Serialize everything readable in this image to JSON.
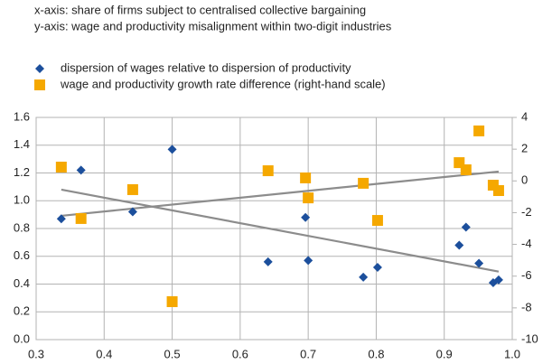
{
  "chart_data": {
    "type": "scatter",
    "annotations": [
      "x-axis: share of firms subject to centralised collective bargaining",
      "y-axis: wage and productivity misalignment within two-digit industries"
    ],
    "series": [
      {
        "name": "dispersion of wages relative to dispersion of productivity",
        "color": "#1c4f9c",
        "marker": "diamond",
        "x": [
          0.337,
          0.366,
          0.442,
          0.5,
          0.641,
          0.696,
          0.7,
          0.781,
          0.802,
          0.922,
          0.932,
          0.951,
          0.972,
          0.98
        ],
        "values": [
          0.87,
          1.22,
          0.92,
          1.37,
          0.56,
          0.88,
          0.57,
          0.45,
          0.52,
          0.68,
          0.81,
          0.55,
          0.41,
          0.43
        ],
        "trendline": {
          "color": "#8c8c8c",
          "x": [
            0.337,
            0.98
          ],
          "values": [
            1.08,
            0.49
          ]
        }
      },
      {
        "name": "wage and productivity growth rate difference (right-hand scale)",
        "color": "#f5a800",
        "marker": "square",
        "axis": "y2",
        "x": [
          0.337,
          0.366,
          0.442,
          0.5,
          0.641,
          0.696,
          0.7,
          0.781,
          0.802,
          0.922,
          0.932,
          0.951,
          0.972,
          0.98
        ],
        "values": [
          0.87,
          -2.37,
          -0.55,
          -7.61,
          0.64,
          0.19,
          -1.07,
          -0.15,
          -2.49,
          1.15,
          0.7,
          3.15,
          -0.27,
          -0.61
        ],
        "trendline": {
          "color": "#8c8c8c",
          "x": [
            0.337,
            0.98
          ],
          "values": [
            -2.2,
            0.59
          ]
        }
      }
    ],
    "xlim": [
      0.3,
      1.0
    ],
    "xticks": [
      0.3,
      0.4,
      0.5,
      0.6,
      0.7,
      0.8,
      0.9,
      {
        "value": 1,
        "label": "1.0"
      }
    ],
    "ylim": [
      0,
      1.6
    ],
    "yticks": [
      {
        "value": 0,
        "label": "0.0"
      },
      0.2,
      0.4,
      0.6,
      0.8,
      {
        "value": 1,
        "label": "1.0"
      },
      1.2,
      1.4,
      1.6
    ],
    "y2lim": [
      -10,
      4
    ],
    "y2ticks": [
      -10,
      -8,
      -6,
      -4,
      -2,
      0,
      2,
      4
    ],
    "grid": true,
    "legend": "top-left"
  }
}
